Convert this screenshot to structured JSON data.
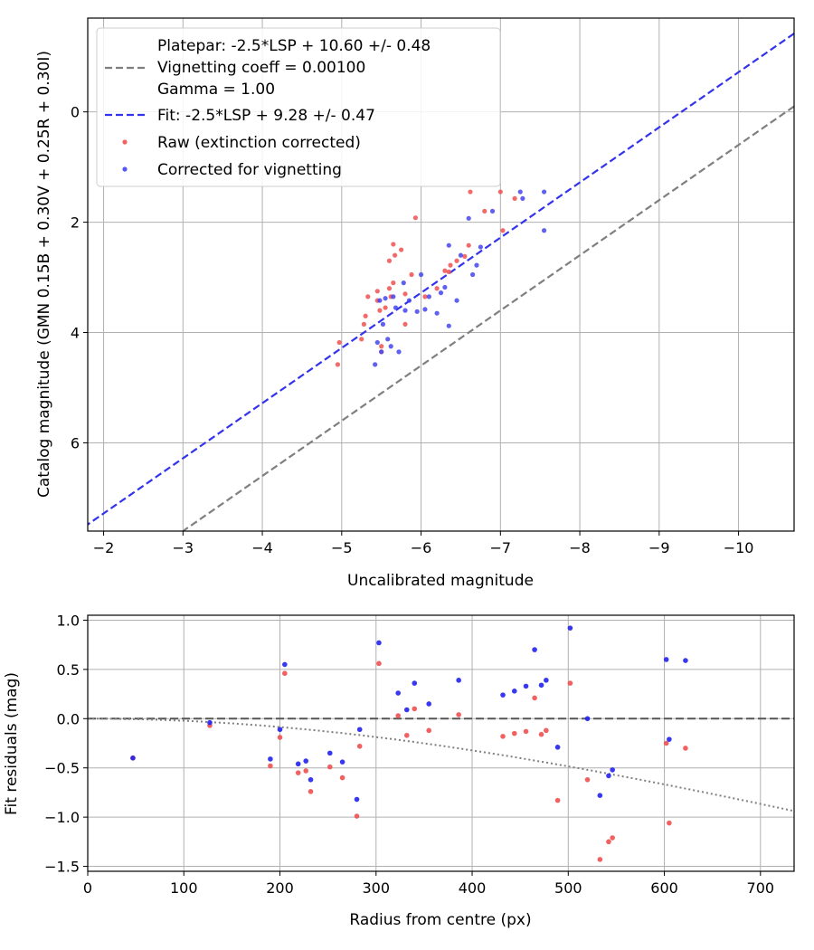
{
  "chart_data": [
    {
      "type": "scatter",
      "xlabel": "Uncalibrated magnitude",
      "ylabel": "Catalog magnitude (GMN 0.15B + 0.30V + 0.25R + 0.30I)",
      "xlim": [
        -1.8,
        -10.7
      ],
      "ylim": [
        7.6,
        -1.7
      ],
      "x_ticks": [
        -2,
        -3,
        -4,
        -5,
        -6,
        -7,
        -8,
        -9,
        -10
      ],
      "x_tick_labels": [
        "−2",
        "−3",
        "−4",
        "−5",
        "−6",
        "−7",
        "−8",
        "−9",
        "−10"
      ],
      "y_ticks": [
        0,
        2,
        4,
        6
      ],
      "y_tick_labels": [
        "0",
        "2",
        "4",
        "6"
      ],
      "grid": true,
      "legend_placement": "top-left",
      "legend": [
        {
          "label": "Platepar: -2.5*LSP + 10.60 +/- 0.48",
          "kind": "none"
        },
        {
          "label": "Vignetting coeff = 0.00100",
          "kind": "dashed-line",
          "color": "#7f7f7f"
        },
        {
          "label": "Gamma = 1.00",
          "kind": "none"
        },
        {
          "label": "Fit: -2.5*LSP + 9.28 +/- 0.47",
          "kind": "dashed-line",
          "color": "#3333ee"
        },
        {
          "label": "Raw (extinction corrected)",
          "kind": "point",
          "color": "#f05050"
        },
        {
          "label": "Corrected for vignetting",
          "kind": "point",
          "color": "#4444ee"
        }
      ],
      "lines": [
        {
          "name": "platepar",
          "slope": 1,
          "intercept": 10.6,
          "color": "#7f7f7f"
        },
        {
          "name": "fit",
          "slope": 1,
          "intercept": 9.28,
          "color": "#3333ee"
        }
      ],
      "series": [
        {
          "color": "#f05050",
          "points": [
            [
              -4.95,
              4.58
            ],
            [
              -4.97,
              4.18
            ],
            [
              -5.25,
              4.12
            ],
            [
              -5.28,
              3.85
            ],
            [
              -5.3,
              3.7
            ],
            [
              -5.33,
              3.35
            ],
            [
              -5.45,
              3.25
            ],
            [
              -5.45,
              3.42
            ],
            [
              -5.48,
              3.6
            ],
            [
              -5.5,
              4.25
            ],
            [
              -5.5,
              4.35
            ],
            [
              -5.55,
              3.55
            ],
            [
              -5.6,
              3.2
            ],
            [
              -5.6,
              2.7
            ],
            [
              -5.62,
              3.35
            ],
            [
              -5.65,
              3.1
            ],
            [
              -5.65,
              2.4
            ],
            [
              -5.67,
              2.6
            ],
            [
              -5.75,
              2.5
            ],
            [
              -5.8,
              3.85
            ],
            [
              -5.8,
              3.3
            ],
            [
              -5.88,
              2.95
            ],
            [
              -5.93,
              1.92
            ],
            [
              -6.05,
              3.35
            ],
            [
              -6.2,
              3.2
            ],
            [
              -6.3,
              2.88
            ],
            [
              -6.35,
              2.9
            ],
            [
              -6.37,
              2.78
            ],
            [
              -6.45,
              2.7
            ],
            [
              -6.55,
              2.62
            ],
            [
              -6.6,
              2.42
            ],
            [
              -6.62,
              1.45
            ],
            [
              -6.8,
              1.8
            ],
            [
              -7.0,
              1.45
            ],
            [
              -7.03,
              2.15
            ],
            [
              -7.18,
              1.57
            ]
          ]
        },
        {
          "color": "#4444ee",
          "points": [
            [
              -5.42,
              4.58
            ],
            [
              -5.45,
              4.18
            ],
            [
              -5.48,
              3.42
            ],
            [
              -5.5,
              4.35
            ],
            [
              -5.52,
              3.85
            ],
            [
              -5.55,
              3.38
            ],
            [
              -5.58,
              4.12
            ],
            [
              -5.62,
              4.25
            ],
            [
              -5.65,
              3.35
            ],
            [
              -5.68,
              3.55
            ],
            [
              -5.72,
              4.35
            ],
            [
              -5.78,
              3.1
            ],
            [
              -5.8,
              3.6
            ],
            [
              -5.85,
              3.42
            ],
            [
              -5.95,
              3.62
            ],
            [
              -6.0,
              2.95
            ],
            [
              -6.05,
              3.58
            ],
            [
              -6.1,
              3.35
            ],
            [
              -6.2,
              3.65
            ],
            [
              -6.25,
              3.28
            ],
            [
              -6.3,
              3.18
            ],
            [
              -6.35,
              2.42
            ],
            [
              -6.35,
              3.88
            ],
            [
              -6.45,
              3.42
            ],
            [
              -6.5,
              2.6
            ],
            [
              -6.6,
              1.93
            ],
            [
              -6.65,
              2.95
            ],
            [
              -6.7,
              2.78
            ],
            [
              -6.75,
              2.45
            ],
            [
              -6.9,
              1.8
            ],
            [
              -7.25,
              1.45
            ],
            [
              -7.28,
              1.57
            ],
            [
              -7.55,
              1.45
            ],
            [
              -7.55,
              2.15
            ]
          ]
        }
      ]
    },
    {
      "type": "scatter",
      "xlabel": "Radius from centre (px)",
      "ylabel": "Fit residuals (mag)",
      "xlim": [
        0,
        735
      ],
      "ylim": [
        -1.55,
        1.05
      ],
      "x_ticks": [
        0,
        100,
        200,
        300,
        400,
        500,
        600,
        700
      ],
      "x_tick_labels": [
        "0",
        "100",
        "200",
        "300",
        "400",
        "500",
        "600",
        "700"
      ],
      "y_ticks": [
        1.0,
        0.5,
        0.0,
        -0.5,
        -1.0,
        -1.5
      ],
      "y_tick_labels": [
        "1.0",
        "0.5",
        "0.0",
        "−0.5",
        "−1.0",
        "−1.5"
      ],
      "grid": true,
      "zero_line": {
        "color": "#555555"
      },
      "vignetting_curve": {
        "coeff": 0.001,
        "color": "#7f7f7f"
      },
      "series": [
        {
          "color": "#f05050",
          "points": [
            [
              47,
              -0.4
            ],
            [
              127,
              -0.07
            ],
            [
              190,
              -0.48
            ],
            [
              200,
              -0.19
            ],
            [
              205,
              0.46
            ],
            [
              219,
              -0.55
            ],
            [
              227,
              -0.53
            ],
            [
              232,
              -0.74
            ],
            [
              252,
              -0.49
            ],
            [
              265,
              -0.6
            ],
            [
              280,
              -0.99
            ],
            [
              283,
              -0.28
            ],
            [
              303,
              0.56
            ],
            [
              323,
              0.03
            ],
            [
              332,
              -0.17
            ],
            [
              340,
              0.1
            ],
            [
              355,
              -0.12
            ],
            [
              386,
              0.04
            ],
            [
              432,
              -0.18
            ],
            [
              444,
              -0.15
            ],
            [
              456,
              -0.13
            ],
            [
              465,
              0.21
            ],
            [
              472,
              -0.16
            ],
            [
              477,
              -0.12
            ],
            [
              489,
              -0.83
            ],
            [
              502,
              0.36
            ],
            [
              520,
              -0.62
            ],
            [
              533,
              -1.43
            ],
            [
              542,
              -1.25
            ],
            [
              546,
              -1.21
            ],
            [
              602,
              -0.25
            ],
            [
              605,
              -1.06
            ],
            [
              622,
              -0.3
            ]
          ]
        },
        {
          "color": "#2222ee",
          "points": [
            [
              47,
              -0.4
            ],
            [
              127,
              -0.04
            ],
            [
              190,
              -0.41
            ],
            [
              200,
              -0.11
            ],
            [
              205,
              0.55
            ],
            [
              219,
              -0.46
            ],
            [
              227,
              -0.43
            ],
            [
              232,
              -0.62
            ],
            [
              252,
              -0.35
            ],
            [
              265,
              -0.44
            ],
            [
              280,
              -0.82
            ],
            [
              283,
              -0.11
            ],
            [
              303,
              0.77
            ],
            [
              323,
              0.26
            ],
            [
              332,
              0.09
            ],
            [
              340,
              0.36
            ],
            [
              355,
              0.15
            ],
            [
              386,
              0.39
            ],
            [
              432,
              0.24
            ],
            [
              444,
              0.28
            ],
            [
              456,
              0.33
            ],
            [
              465,
              0.7
            ],
            [
              472,
              0.34
            ],
            [
              477,
              0.39
            ],
            [
              489,
              -0.29
            ],
            [
              502,
              0.92
            ],
            [
              520,
              0.0
            ],
            [
              533,
              -0.78
            ],
            [
              542,
              -0.58
            ],
            [
              546,
              -0.52
            ],
            [
              602,
              0.6
            ],
            [
              605,
              -0.21
            ],
            [
              622,
              0.59
            ]
          ]
        }
      ]
    }
  ]
}
